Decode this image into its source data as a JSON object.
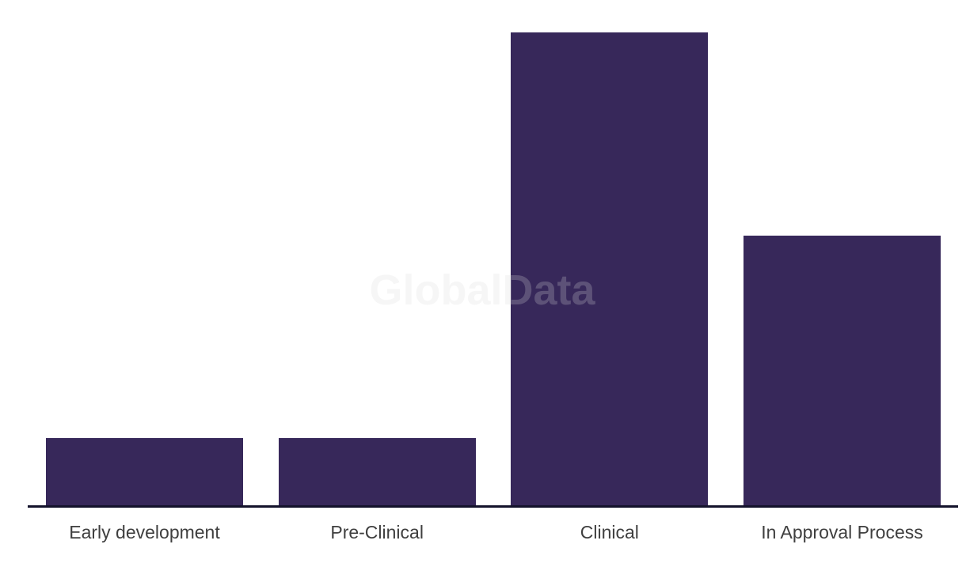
{
  "watermark": {
    "text": "GlobalData",
    "color": "rgba(218,218,218,0.24)"
  },
  "colors": {
    "bar_fill": "#37285A",
    "axis_line": "#13122B",
    "label_text": "#3F3F3F",
    "background": "#FFFFFF"
  },
  "chart_data": {
    "type": "bar",
    "title": "",
    "xlabel": "",
    "ylabel": "",
    "categories": [
      "Early development",
      "Pre-Clinical",
      "Clinical",
      "In Approval Process"
    ],
    "values": [
      1,
      1,
      7,
      4
    ],
    "values_estimated_from_bar_heights": true,
    "ylim": [
      0,
      7.5
    ],
    "value_axis_visible": false,
    "grid": false,
    "legend": false,
    "bar_color": "#37285A",
    "watermark": "GlobalData"
  }
}
